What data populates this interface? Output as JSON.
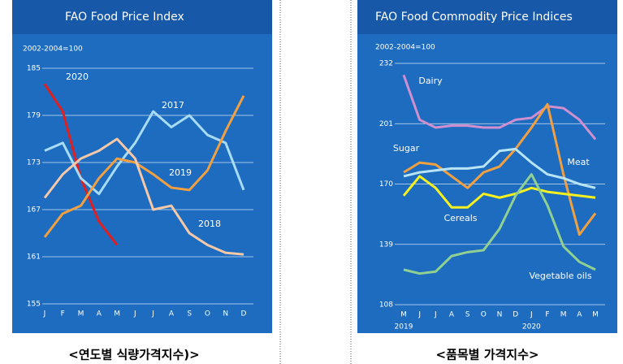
{
  "chart_data": [
    {
      "type": "line",
      "title": "FAO Food Price Index",
      "subtitle": "2002-2004=100",
      "categories": [
        "J",
        "F",
        "M",
        "A",
        "M",
        "J",
        "J",
        "A",
        "S",
        "O",
        "N",
        "D"
      ],
      "ylim": [
        155,
        185
      ],
      "yticks": [
        155,
        161,
        167,
        173,
        179,
        185
      ],
      "grid": true,
      "series": [
        {
          "name": "2020",
          "color": "#e02020",
          "values": [
            183,
            179.5,
            171,
            165.5,
            162.5,
            null,
            null,
            null,
            null,
            null,
            null,
            null
          ]
        },
        {
          "name": "2017",
          "color": "#a8dcf5",
          "values": [
            174.5,
            175.5,
            171,
            169,
            172.5,
            175.5,
            179.5,
            177.5,
            179,
            176.5,
            175.5,
            169.5
          ]
        },
        {
          "name": "2019",
          "color": "#f0a040",
          "values": [
            163.5,
            166.5,
            167.5,
            171,
            173.5,
            173,
            171.5,
            169.8,
            169.5,
            172,
            177,
            181.5
          ]
        },
        {
          "name": "2018",
          "color": "#f5c8a8",
          "values": [
            168.5,
            171.5,
            173.5,
            174.5,
            176,
            173.5,
            167,
            167.5,
            164,
            162.5,
            161.5,
            161.3
          ]
        }
      ]
    },
    {
      "type": "line",
      "title": "FAO Food Commodity Price Indices",
      "subtitle": "2002-2004=100",
      "categories": [
        "M",
        "J",
        "J",
        "A",
        "S",
        "O",
        "N",
        "D",
        "J",
        "F",
        "M",
        "A",
        "M"
      ],
      "years": [
        "2019",
        null,
        null,
        null,
        null,
        null,
        null,
        null,
        "2020",
        null,
        null,
        null,
        null
      ],
      "ylim": [
        108,
        232
      ],
      "yticks": [
        108,
        139,
        170,
        201,
        232
      ],
      "grid": true,
      "series": [
        {
          "name": "Dairy",
          "color": "#d090d0",
          "values": [
            226,
            203,
            199,
            200,
            200,
            199,
            199,
            203,
            204,
            210,
            209,
            203,
            193
          ]
        },
        {
          "name": "Sugar",
          "color": "#f0a040",
          "values": [
            176,
            181,
            180,
            174,
            168,
            176,
            179,
            188,
            199,
            211,
            175,
            144,
            155
          ]
        },
        {
          "name": "Meat",
          "color": "#b8e4f8",
          "values": [
            174,
            176,
            177,
            178,
            178,
            179,
            187,
            188,
            181,
            175,
            173,
            170,
            168
          ]
        },
        {
          "name": "Cereals",
          "color": "#f5f020",
          "values": [
            164,
            174,
            168,
            158,
            158,
            165,
            163,
            165,
            168,
            166,
            165,
            164,
            163
          ]
        },
        {
          "name": "Vegetable oils",
          "color": "#90d090",
          "values": [
            126,
            124,
            125,
            133,
            135,
            136,
            147,
            164,
            175,
            159,
            138,
            130,
            126
          ]
        }
      ]
    }
  ],
  "captions": [
    "<연도별 식량가격지수)>",
    "<품목별 가격지수>"
  ]
}
